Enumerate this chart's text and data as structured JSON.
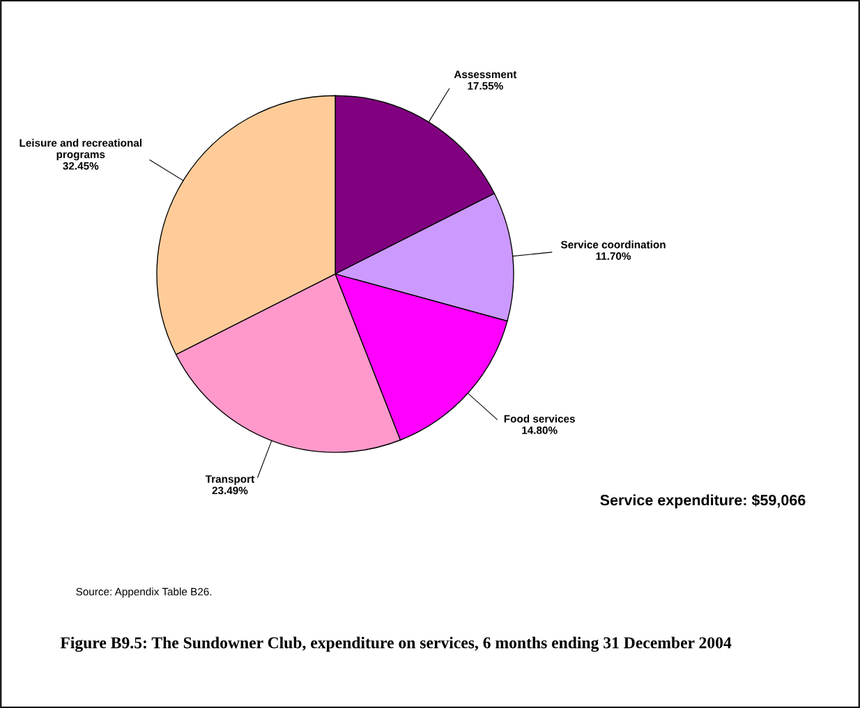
{
  "chart_data": {
    "type": "pie",
    "title": "Figure B9.5: The Sundowner Club, expenditure on services, 6 months ending 31 December 2004",
    "categories": [
      "Assessment",
      "Service coordination",
      "Food services",
      "Transport",
      "Leisure and recreational\nprograms"
    ],
    "values": [
      17.55,
      11.7,
      14.8,
      23.49,
      32.45
    ],
    "value_labels": [
      "17.55%",
      "11.70%",
      "14.80%",
      "23.49%",
      "32.45%"
    ],
    "colors": [
      "#800080",
      "#cc99ff",
      "#ff00ff",
      "#ff99cc",
      "#ffcc99"
    ],
    "annotations": [
      "Service expenditure: $59,066",
      "Source: Appendix Table B26."
    ],
    "legend": false
  }
}
